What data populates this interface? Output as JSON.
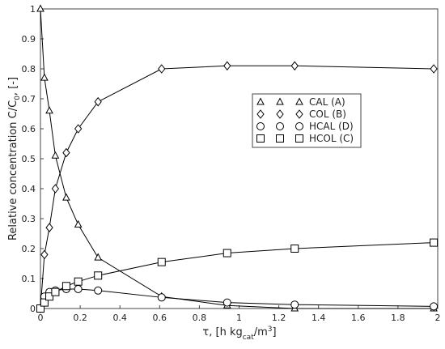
{
  "chart_data": {
    "type": "line",
    "ylabel_parts": [
      "Relative concentration C/C",
      "0",
      ", [-]"
    ],
    "xlabel_parts": [
      "τ, [h kg",
      "cat",
      "/m",
      "3",
      "]"
    ],
    "x": [
      0,
      0.02,
      0.045,
      0.075,
      0.13,
      0.19,
      0.29,
      0.61,
      0.94,
      1.28,
      1.98
    ],
    "series": [
      {
        "name": "CAL (A)",
        "marker": "triangle",
        "color": "#000000",
        "values": [
          1,
          0.77,
          0.66,
          0.51,
          0.37,
          0.28,
          0.17,
          0.04,
          0.01,
          0.0,
          0.0
        ]
      },
      {
        "name": "COL (B)",
        "marker": "diamond",
        "color": "#000000",
        "values": [
          0,
          0.18,
          0.27,
          0.4,
          0.52,
          0.6,
          0.69,
          0.8,
          0.81,
          0.81,
          0.8
        ]
      },
      {
        "name": "HCAL (D)",
        "marker": "circle",
        "color": "#000000",
        "values": [
          0,
          0.04,
          0.055,
          0.06,
          0.065,
          0.065,
          0.06,
          0.037,
          0.02,
          0.013,
          0.007
        ]
      },
      {
        "name": "HCOL (C)",
        "marker": "square",
        "color": "#000000",
        "values": [
          0,
          0.02,
          0.04,
          0.055,
          0.075,
          0.09,
          0.11,
          0.155,
          0.185,
          0.2,
          0.22
        ]
      }
    ],
    "xlim": [
      0,
      2
    ],
    "xticks": [
      0,
      0.2,
      0.4,
      0.6,
      0.8,
      1,
      1.2,
      1.4,
      1.6,
      1.8,
      2
    ],
    "ylim": [
      0,
      1
    ],
    "yticks": [
      0,
      0.1,
      0.2,
      0.3,
      0.4,
      0.5,
      0.6,
      0.7,
      0.8,
      0.9,
      1
    ],
    "grid": false
  }
}
